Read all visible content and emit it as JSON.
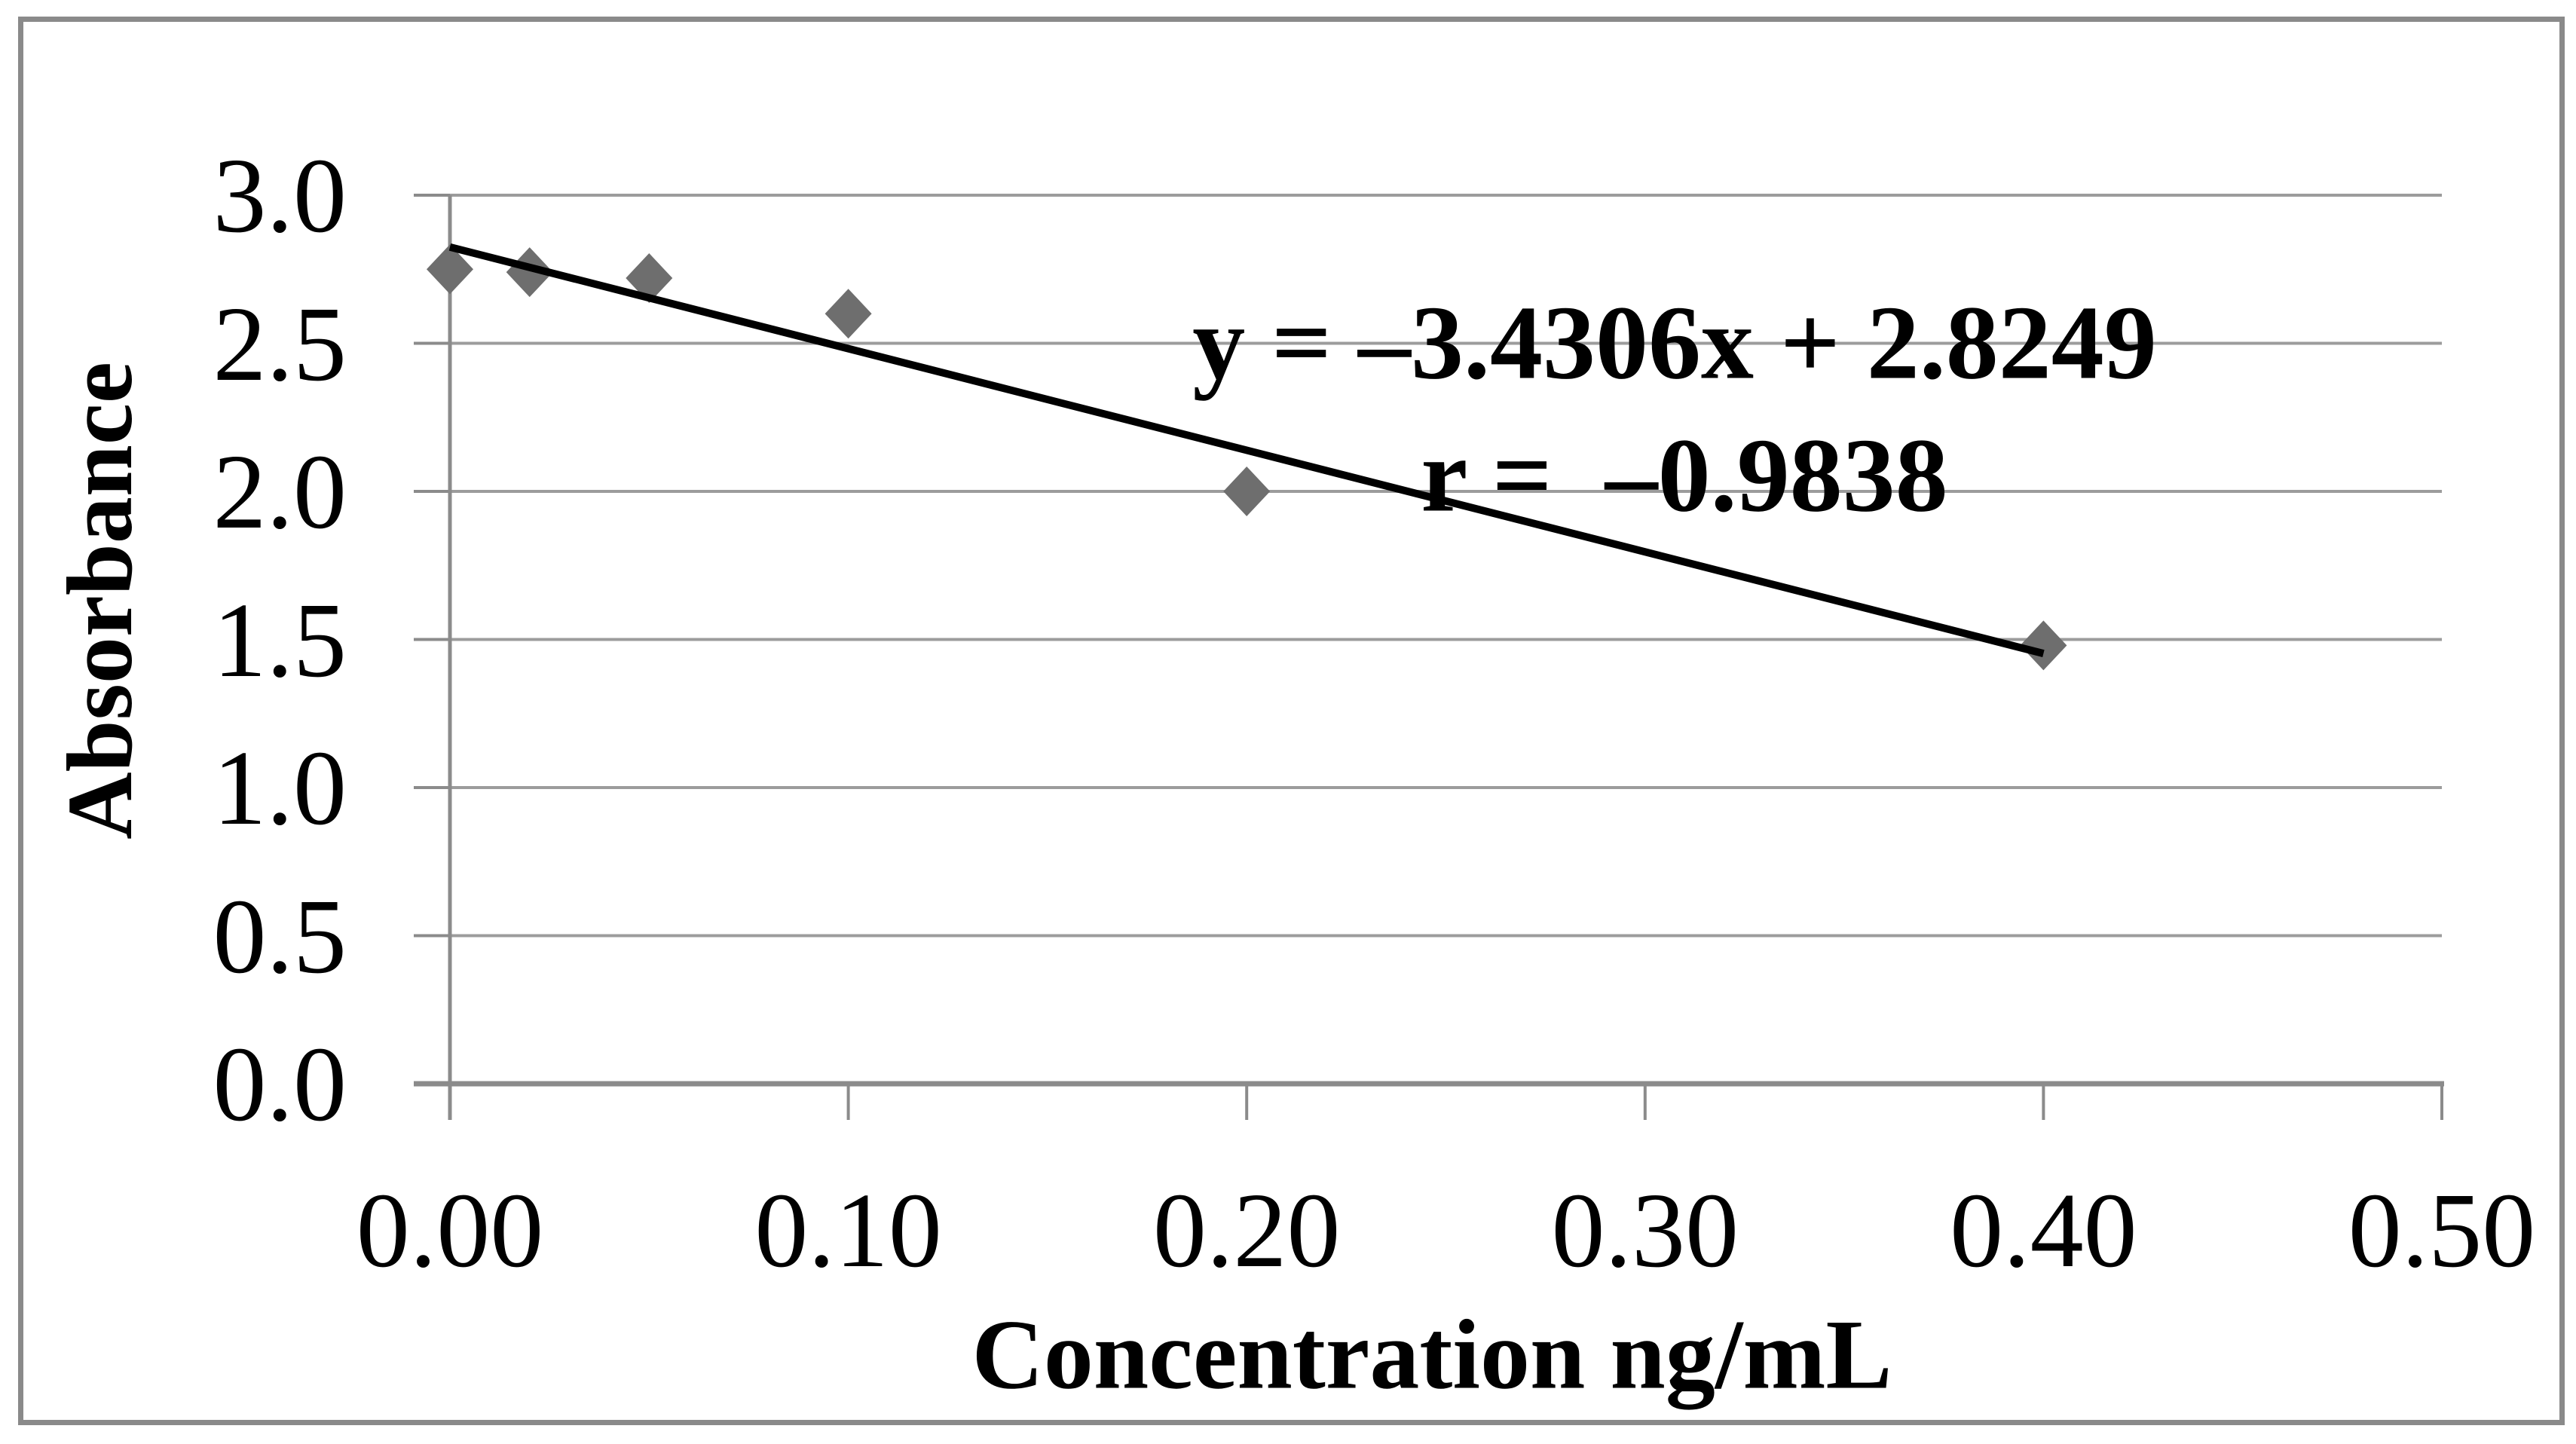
{
  "figure": {
    "background": "#ffffff",
    "border_color": "#8a8a8a"
  },
  "chart_data": {
    "type": "scatter",
    "title": "",
    "xlabel": "Concentration ng/mL",
    "ylabel": "Absorbance",
    "xlim": [
      0,
      0.5
    ],
    "ylim": [
      0,
      3.0
    ],
    "grid": {
      "horizontal": true,
      "vertical": false
    },
    "legend": "none",
    "xticks": {
      "values": [
        0,
        0.1,
        0.2,
        0.3,
        0.4,
        0.5
      ],
      "labels": [
        "0.00",
        "0.10",
        "0.20",
        "0.30",
        "0.40",
        "0.50"
      ]
    },
    "yticks": {
      "values": [
        3.0,
        2.5,
        2.0,
        1.5,
        1.0,
        0.5,
        0.0
      ],
      "labels": [
        "3.0",
        "2.5",
        "2.0",
        "1.5",
        "1.0",
        "0.5",
        "0.0"
      ]
    },
    "points": [
      {
        "x": 0.0,
        "y": 2.75
      },
      {
        "x": 0.02,
        "y": 2.74
      },
      {
        "x": 0.05,
        "y": 2.72
      },
      {
        "x": 0.1,
        "y": 2.6
      },
      {
        "x": 0.2,
        "y": 2.0
      },
      {
        "x": 0.4,
        "y": 1.48
      }
    ],
    "trendline": {
      "slope": -3.4306,
      "intercept": 2.8249,
      "x_start": 0.0,
      "x_end": 0.4,
      "color": "#000000"
    },
    "annotation": {
      "line1": "y = –3.4306x + 2.8249",
      "line2": "r =  –0.9838",
      "r_value": -0.9838
    },
    "marker": {
      "shape": "diamond",
      "color": "#6e6e6e"
    },
    "colors": {
      "gridline": "#9c9c9c",
      "axis": "#8b8b8b",
      "text": "#000000"
    }
  }
}
